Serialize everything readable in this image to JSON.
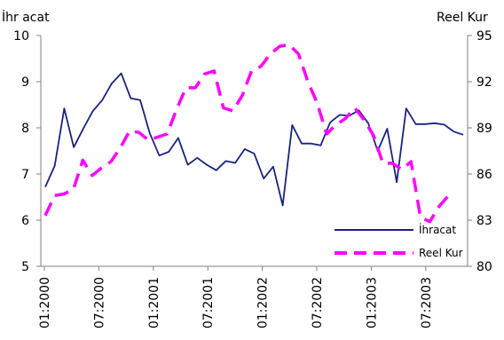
{
  "chart_data": {
    "type": "line",
    "left_axis_title": "İhr acat",
    "right_axis_title": "Reel Kur",
    "left_ylim": [
      5,
      10
    ],
    "right_ylim": [
      80,
      95
    ],
    "left_ticks": [
      "5",
      "6",
      "7",
      "8",
      "9",
      "10"
    ],
    "right_ticks": [
      "80",
      "83",
      "86",
      "89",
      "92",
      "95"
    ],
    "x_tick_labels": [
      "01:2000",
      "07:2000",
      "01:2001",
      "07:2001",
      "01:2002",
      "07:2002",
      "01:2003",
      "07:2003"
    ],
    "legend_position": "lower-right",
    "series": [
      {
        "name": "İhracat",
        "axis": "left",
        "color": "#1a237e",
        "style": "solid",
        "values": [
          6.72,
          7.18,
          8.42,
          7.58,
          7.98,
          8.36,
          8.6,
          8.96,
          9.18,
          8.64,
          8.6,
          7.88,
          7.4,
          7.48,
          7.78,
          7.2,
          7.35,
          7.2,
          7.08,
          7.28,
          7.24,
          7.54,
          7.44,
          6.9,
          7.16,
          6.32,
          8.06,
          7.66,
          7.66,
          7.62,
          8.12,
          8.28,
          8.26,
          8.38,
          8.1,
          7.5,
          7.98,
          6.82,
          8.42,
          8.08,
          8.08,
          8.1,
          8.07,
          7.92,
          7.85
        ]
      },
      {
        "name": "Reel Kur",
        "axis": "right",
        "color": "#ff00ff",
        "style": "dashed",
        "values": [
          83.3,
          84.6,
          84.7,
          85.0,
          86.9,
          85.9,
          86.4,
          86.8,
          87.7,
          88.8,
          88.7,
          88.2,
          88.4,
          88.6,
          90.2,
          91.6,
          91.6,
          92.5,
          92.7,
          90.3,
          90.1,
          91.1,
          92.7,
          93.0,
          93.8,
          94.3,
          94.4,
          93.8,
          92.0,
          90.6,
          88.6,
          89.2,
          89.6,
          90.3,
          89.5,
          88.5,
          86.7,
          86.7,
          86.3,
          86.8,
          83.2,
          82.9,
          83.9,
          84.6
        ]
      }
    ]
  }
}
